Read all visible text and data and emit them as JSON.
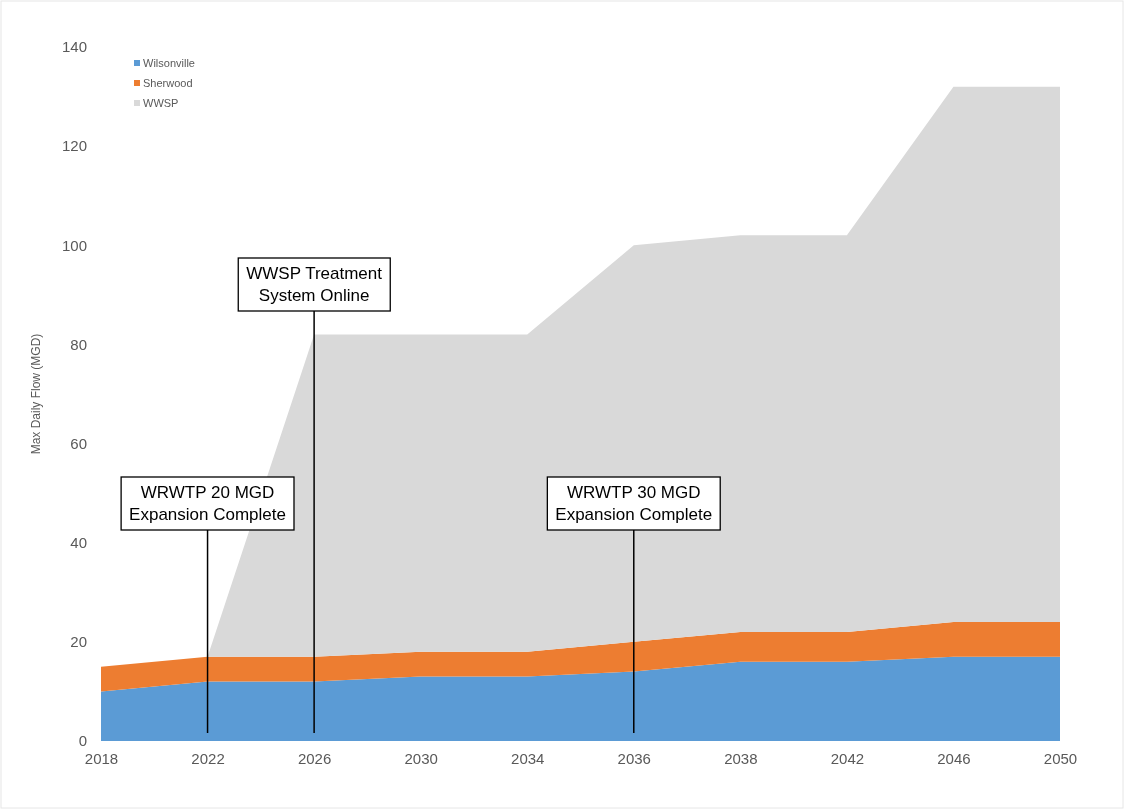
{
  "chart_data": {
    "type": "area",
    "stacked": true,
    "ylabel": "Max Daily Flow (MGD)",
    "categories": [
      "2018",
      "2022",
      "2026",
      "2030",
      "2034",
      "2036",
      "2038",
      "2042",
      "2046",
      "2050"
    ],
    "series": [
      {
        "name": "Wilsonville",
        "color": "#5b9bd5",
        "values": [
          10,
          12,
          12,
          13,
          13,
          14,
          16,
          16,
          17,
          17
        ]
      },
      {
        "name": "Sherwood",
        "color": "#ed7d31",
        "values": [
          5,
          5,
          5,
          5,
          5,
          6,
          6,
          6,
          7,
          7
        ]
      },
      {
        "name": "WWSP",
        "color": "#d9d9d9",
        "values": [
          0,
          0,
          65,
          64,
          64,
          80,
          80,
          80,
          108,
          108
        ]
      }
    ],
    "ylim": [
      0,
      140
    ],
    "yticks": [
      0,
      20,
      40,
      60,
      80,
      100,
      120,
      140
    ],
    "legend": "top left",
    "ref_lines": [
      {
        "axis": "x",
        "value": "2022",
        "label": "WRWTP 20 MGD\nExpansion Complete",
        "color": "#000000"
      },
      {
        "axis": "x",
        "value": "2026",
        "label": "WWSP Treatment\nSystem Online",
        "color": "#000000"
      },
      {
        "axis": "x",
        "value": "2036",
        "label": "WRWTP 30 MGD\nExpansion Complete",
        "color": "#000000"
      }
    ]
  }
}
